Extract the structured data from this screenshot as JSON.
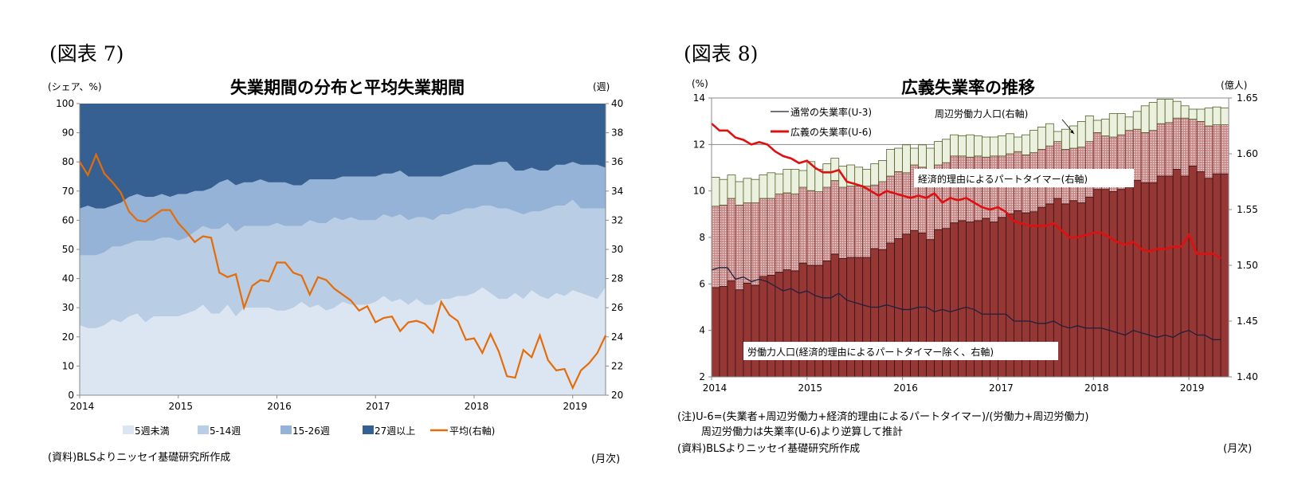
{
  "figure7": {
    "label": "(図表 7)",
    "title": "失業期間の分布と平均失業期間",
    "left_unit": "(シェア、%)",
    "right_unit": "(週)",
    "source": "(資料)BLSよりニッセイ基礎研究所作成",
    "freq": "(月次)"
  },
  "figure8": {
    "label": "(図表 8)",
    "title": "広義失業率の推移",
    "left_unit": "(%)",
    "right_unit": "(億人)",
    "note1": "(注)U-6=(失業者+周辺労働力+経済的理由によるパートタイマー)/(労働力+周辺労働力)",
    "note2": "周辺労働力は失業率(U-6)より逆算して推計",
    "source": "(資料)BLSよりニッセイ基礎研究所作成",
    "freq": "(月次)",
    "annotations": {
      "marginal": "周辺労働力人口(右軸)",
      "parttime": "経済的理由によるパートタイマー(右軸)",
      "labor": "労働力人口(経済的理由によるパートタイマー除く、右軸)"
    }
  },
  "chart_data": [
    {
      "type": "area",
      "stacked": true,
      "title": "失業期間の分布と平均失業期間",
      "start": "2014-01",
      "frequency": "monthly",
      "x_tick_labels": [
        "2014",
        "2015",
        "2016",
        "2017",
        "2018",
        "2019"
      ],
      "ylabel": "(シェア、%)",
      "ylim": [
        0,
        100
      ],
      "y_ticks": [
        "0",
        "10",
        "20",
        "30",
        "40",
        "50",
        "60",
        "70",
        "80",
        "90",
        "100"
      ],
      "y2label": "(週)",
      "y2lim": [
        20,
        40
      ],
      "y2_ticks": [
        "20",
        "22",
        "24",
        "26",
        "28",
        "30",
        "32",
        "34",
        "36",
        "38",
        "40"
      ],
      "legend_position": "bottom",
      "colors": {
        "lt5": "#dce6f2",
        "w5_14": "#b9cde5",
        "w15_26": "#95b3d7",
        "w27": "#366092",
        "mean": "#e46c0a"
      },
      "series": [
        {
          "key": "lt5",
          "name": "5週未満",
          "axis": "left",
          "values": [
            24,
            23,
            23,
            24,
            26,
            25,
            27,
            28,
            25,
            27,
            27,
            27,
            27,
            28,
            29,
            31,
            28,
            28,
            31,
            27,
            30,
            30,
            30,
            30,
            29,
            29,
            30,
            32,
            30,
            31,
            29,
            30,
            32,
            31,
            31,
            31,
            32,
            34,
            32,
            33,
            31,
            33,
            31,
            31,
            33,
            33,
            34,
            34,
            35,
            37,
            35,
            33,
            33,
            35,
            33,
            36,
            34,
            33,
            35,
            34,
            36,
            35,
            34,
            33,
            37
          ]
        },
        {
          "key": "w5_14",
          "name": "5-14週",
          "axis": "left",
          "values": [
            24,
            25,
            25,
            25,
            25,
            26,
            25,
            25,
            28,
            26,
            27,
            27,
            26,
            26,
            27,
            27,
            29,
            29,
            28,
            29,
            28,
            28,
            28,
            28,
            30,
            29,
            28,
            26,
            30,
            28,
            30,
            31,
            28,
            30,
            29,
            29,
            28,
            28,
            29,
            29,
            29,
            28,
            30,
            29,
            29,
            29,
            29,
            30,
            29,
            28,
            30,
            31,
            31,
            28,
            29,
            27,
            29,
            31,
            30,
            31,
            31,
            29,
            30,
            31,
            27
          ]
        },
        {
          "key": "w15_26",
          "name": "15-26週",
          "axis": "left",
          "values": [
            16,
            17,
            16,
            15,
            14,
            15,
            16,
            16,
            15,
            15,
            15,
            14,
            16,
            15,
            14,
            12,
            14,
            16,
            15,
            16,
            15,
            15,
            16,
            15,
            14,
            15,
            14,
            14,
            14,
            15,
            15,
            13,
            15,
            14,
            15,
            15,
            15,
            14,
            15,
            15,
            15,
            14,
            14,
            15,
            13,
            14,
            14,
            14,
            15,
            14,
            14,
            16,
            16,
            14,
            15,
            15,
            14,
            13,
            14,
            14,
            13,
            15,
            15,
            15,
            14
          ]
        },
        {
          "key": "w27",
          "name": "27週以上",
          "axis": "left",
          "values": [
            36,
            35,
            36,
            36,
            35,
            34,
            32,
            31,
            32,
            32,
            31,
            32,
            31,
            31,
            30,
            30,
            29,
            27,
            26,
            28,
            27,
            27,
            26,
            27,
            27,
            27,
            28,
            28,
            26,
            26,
            26,
            26,
            25,
            25,
            25,
            25,
            25,
            24,
            24,
            23,
            25,
            25,
            25,
            25,
            25,
            24,
            23,
            22,
            21,
            21,
            21,
            20,
            20,
            23,
            23,
            22,
            23,
            23,
            21,
            21,
            20,
            21,
            21,
            21,
            22
          ]
        },
        {
          "key": "mean",
          "name": "平均(右軸)",
          "axis": "right",
          "type": "line",
          "values": [
            36.0,
            35.1,
            36.5,
            35.2,
            34.6,
            33.9,
            32.6,
            32.0,
            31.9,
            32.3,
            32.7,
            32.7,
            31.8,
            31.2,
            30.5,
            30.9,
            30.8,
            28.4,
            28.1,
            28.3,
            26.0,
            27.5,
            27.9,
            27.8,
            29.1,
            29.1,
            28.4,
            28.2,
            26.9,
            28.1,
            27.9,
            27.3,
            26.9,
            26.5,
            25.8,
            26.1,
            25.0,
            25.3,
            25.4,
            24.4,
            25.0,
            25.1,
            24.9,
            24.3,
            26.4,
            25.5,
            25.1,
            23.8,
            23.9,
            22.9,
            24.2,
            23.0,
            21.3,
            21.2,
            23.1,
            22.6,
            24.1,
            22.4,
            21.7,
            21.8,
            20.5,
            21.7,
            22.2,
            22.9,
            24.1
          ]
        }
      ]
    },
    {
      "type": "bar",
      "stacked": true,
      "stack_values": "cumulative_top",
      "title": "広義失業率の推移",
      "start": "2014-01",
      "frequency": "monthly",
      "x_tick_labels": [
        "2014",
        "2015",
        "2016",
        "2017",
        "2018",
        "2019"
      ],
      "ylabel": "(%)",
      "ylim": [
        2,
        14
      ],
      "y_ticks": [
        "2",
        "4",
        "6",
        "8",
        "10",
        "12",
        "14"
      ],
      "y2label": "(億人)",
      "y2lim": [
        1.4,
        1.65
      ],
      "y2_ticks": [
        "1.40",
        "1.45",
        "1.50",
        "1.55",
        "1.60",
        "1.65"
      ],
      "legend_position": "top-left",
      "colors": {
        "labor": "#953735",
        "parttime": "#e6b9b8",
        "marginal": "#ebf1de",
        "u3": "#1f1f3f",
        "u6": "#e01010"
      },
      "series": [
        {
          "key": "labor",
          "name": "労働力人口(経済的理由によるパートタイマー除く、右軸)",
          "axis": "right",
          "type": "bar",
          "values": [
            1.48,
            1.481,
            1.486,
            1.478,
            1.484,
            1.482,
            1.49,
            1.491,
            1.494,
            1.496,
            1.495,
            1.502,
            1.5,
            1.5,
            1.504,
            1.51,
            1.506,
            1.507,
            1.507,
            1.507,
            1.515,
            1.514,
            1.52,
            1.524,
            1.528,
            1.531,
            1.529,
            1.523,
            1.532,
            1.533,
            1.538,
            1.54,
            1.539,
            1.54,
            1.542,
            1.539,
            1.543,
            1.546,
            1.549,
            1.547,
            1.548,
            1.552,
            1.555,
            1.56,
            1.555,
            1.558,
            1.556,
            1.561,
            1.568,
            1.568,
            1.566,
            1.568,
            1.575,
            1.576,
            1.574,
            1.574,
            1.58,
            1.58,
            1.586,
            1.58,
            1.589,
            1.584,
            1.578,
            1.582,
            1.582
          ]
        },
        {
          "key": "parttime",
          "name": "経済的理由によるパートタイマー(右軸)",
          "axis": "right",
          "type": "bar",
          "values": [
            1.553,
            1.554,
            1.56,
            1.554,
            1.556,
            1.556,
            1.56,
            1.56,
            1.564,
            1.565,
            1.564,
            1.57,
            1.567,
            1.566,
            1.57,
            1.576,
            1.57,
            1.571,
            1.571,
            1.571,
            1.572,
            1.575,
            1.58,
            1.584,
            1.583,
            1.59,
            1.588,
            1.586,
            1.59,
            1.592,
            1.598,
            1.598,
            1.597,
            1.598,
            1.597,
            1.598,
            1.598,
            1.6,
            1.602,
            1.599,
            1.601,
            1.604,
            1.607,
            1.611,
            1.604,
            1.605,
            1.606,
            1.611,
            1.619,
            1.616,
            1.615,
            1.617,
            1.621,
            1.622,
            1.619,
            1.621,
            1.627,
            1.628,
            1.632,
            1.632,
            1.631,
            1.629,
            1.625,
            1.626,
            1.626
          ]
        },
        {
          "key": "marginal",
          "name": "周辺労働力人口(右軸)",
          "axis": "right",
          "type": "bar",
          "values": [
            1.579,
            1.577,
            1.581,
            1.575,
            1.578,
            1.577,
            1.581,
            1.583,
            1.582,
            1.586,
            1.586,
            1.585,
            1.593,
            1.586,
            1.591,
            1.596,
            1.589,
            1.59,
            1.588,
            1.586,
            1.591,
            1.594,
            1.604,
            1.605,
            1.608,
            1.605,
            1.608,
            1.605,
            1.611,
            1.613,
            1.617,
            1.616,
            1.617,
            1.616,
            1.615,
            1.615,
            1.616,
            1.618,
            1.615,
            1.617,
            1.621,
            1.624,
            1.627,
            1.62,
            1.622,
            1.625,
            1.629,
            1.634,
            1.63,
            1.631,
            1.636,
            1.636,
            1.633,
            1.638,
            1.643,
            1.646,
            1.649,
            1.649,
            1.647,
            1.643,
            1.64,
            1.64,
            1.641,
            1.642,
            1.641
          ]
        },
        {
          "key": "u3",
          "name": "通常の失業率(U-3)",
          "axis": "left",
          "type": "line",
          "values": [
            6.6,
            6.7,
            6.7,
            6.2,
            6.3,
            6.1,
            6.2,
            6.1,
            5.9,
            5.7,
            5.8,
            5.6,
            5.7,
            5.5,
            5.4,
            5.4,
            5.6,
            5.3,
            5.2,
            5.1,
            5.0,
            5.0,
            5.1,
            5.0,
            4.9,
            4.9,
            5.0,
            5.0,
            4.8,
            4.9,
            4.8,
            4.9,
            5.0,
            4.9,
            4.7,
            4.7,
            4.7,
            4.7,
            4.4,
            4.4,
            4.4,
            4.3,
            4.3,
            4.4,
            4.2,
            4.1,
            4.2,
            4.1,
            4.1,
            4.1,
            4.0,
            3.9,
            3.8,
            4.0,
            3.9,
            3.8,
            3.7,
            3.8,
            3.7,
            3.9,
            4.0,
            3.8,
            3.8,
            3.6,
            3.6
          ]
        },
        {
          "key": "u6",
          "name": "広義の失業率(U-6)",
          "axis": "left",
          "type": "line",
          "values": [
            12.9,
            12.6,
            12.6,
            12.3,
            12.2,
            12.0,
            12.1,
            12.0,
            11.7,
            11.5,
            11.4,
            11.2,
            11.3,
            11.0,
            10.8,
            10.8,
            10.9,
            10.4,
            10.3,
            10.2,
            10.0,
            9.8,
            10.0,
            9.9,
            9.8,
            9.7,
            9.8,
            9.7,
            9.9,
            9.5,
            9.7,
            9.6,
            9.7,
            9.5,
            9.3,
            9.2,
            9.3,
            9.1,
            8.7,
            8.6,
            8.5,
            8.5,
            8.5,
            8.6,
            8.3,
            8.0,
            8.0,
            8.1,
            8.2,
            8.2,
            8.0,
            7.8,
            7.7,
            7.8,
            7.5,
            7.4,
            7.5,
            7.5,
            7.6,
            7.6,
            8.1,
            7.3,
            7.3,
            7.3,
            7.1
          ]
        }
      ]
    }
  ]
}
